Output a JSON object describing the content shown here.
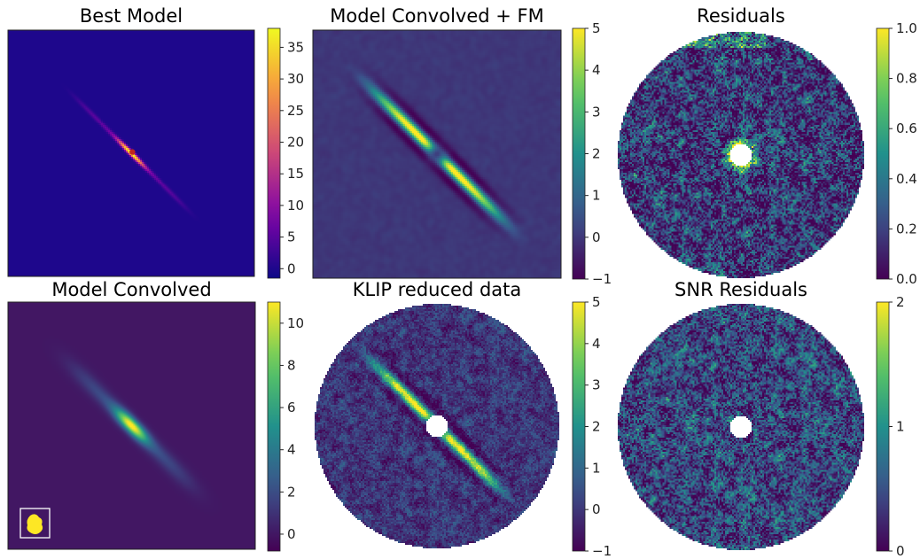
{
  "figure": {
    "background": "#ffffff",
    "panels": [
      {
        "id": "best-model",
        "title": "Best Model",
        "colormap": "plasma",
        "ticks": [
          "0",
          "5",
          "10",
          "15",
          "20",
          "25",
          "30",
          "35"
        ],
        "vmin": -1.5,
        "vmax": 38,
        "field": "disk-thin",
        "mask": "none"
      },
      {
        "id": "model-convolved-fm",
        "title": "Model Convolved + FM",
        "colormap": "viridis",
        "ticks": [
          "−1",
          "0",
          "1",
          "2",
          "3",
          "4",
          "5"
        ],
        "vmin": -1,
        "vmax": 5,
        "field": "disk-fm",
        "mask": "none"
      },
      {
        "id": "residuals",
        "title": "Residuals",
        "colormap": "viridis",
        "ticks": [
          "0.0",
          "0.2",
          "0.4",
          "0.6",
          "0.8",
          "1.0"
        ],
        "vmin": 0,
        "vmax": 1,
        "field": "noise-bright-center",
        "mask": "circle-hole"
      },
      {
        "id": "model-convolved",
        "title": "Model Convolved",
        "colormap": "viridis",
        "ticks": [
          "0",
          "2",
          "4",
          "6",
          "8",
          "10"
        ],
        "vmin": -0.8,
        "vmax": 11,
        "field": "disk-blurred",
        "mask": "none"
      },
      {
        "id": "klip-reduced",
        "title": "KLIP reduced data",
        "colormap": "viridis",
        "ticks": [
          "−1",
          "0",
          "1",
          "2",
          "3",
          "4",
          "5"
        ],
        "vmin": -1,
        "vmax": 5,
        "field": "disk-klip",
        "mask": "circle-hole"
      },
      {
        "id": "snr-residuals",
        "title": "SNR Residuals",
        "colormap": "viridis",
        "ticks": [
          "0",
          "1",
          "2"
        ],
        "vmin": 0,
        "vmax": 2,
        "field": "noise",
        "mask": "circle-hole"
      }
    ]
  },
  "chart_data": [
    {
      "type": "heatmap",
      "title": "Best Model",
      "colorbar": {
        "min": -1.5,
        "max": 38,
        "ticks": [
          0,
          5,
          10,
          15,
          20,
          25,
          30,
          35
        ]
      }
    },
    {
      "type": "heatmap",
      "title": "Model Convolved + FM",
      "colorbar": {
        "min": -1,
        "max": 5,
        "ticks": [
          -1,
          0,
          1,
          2,
          3,
          4,
          5
        ]
      }
    },
    {
      "type": "heatmap",
      "title": "Residuals",
      "colorbar": {
        "min": 0,
        "max": 1,
        "ticks": [
          0.0,
          0.2,
          0.4,
          0.6,
          0.8,
          1.0
        ]
      }
    },
    {
      "type": "heatmap",
      "title": "Model Convolved",
      "colorbar": {
        "min": -0.8,
        "max": 11,
        "ticks": [
          0,
          2,
          4,
          6,
          8,
          10
        ]
      }
    },
    {
      "type": "heatmap",
      "title": "KLIP reduced data",
      "colorbar": {
        "min": -1,
        "max": 5,
        "ticks": [
          -1,
          0,
          1,
          2,
          3,
          4,
          5
        ]
      }
    },
    {
      "type": "heatmap",
      "title": "SNR Residuals",
      "colorbar": {
        "min": 0,
        "max": 2,
        "ticks": [
          0,
          1,
          2
        ]
      }
    }
  ]
}
